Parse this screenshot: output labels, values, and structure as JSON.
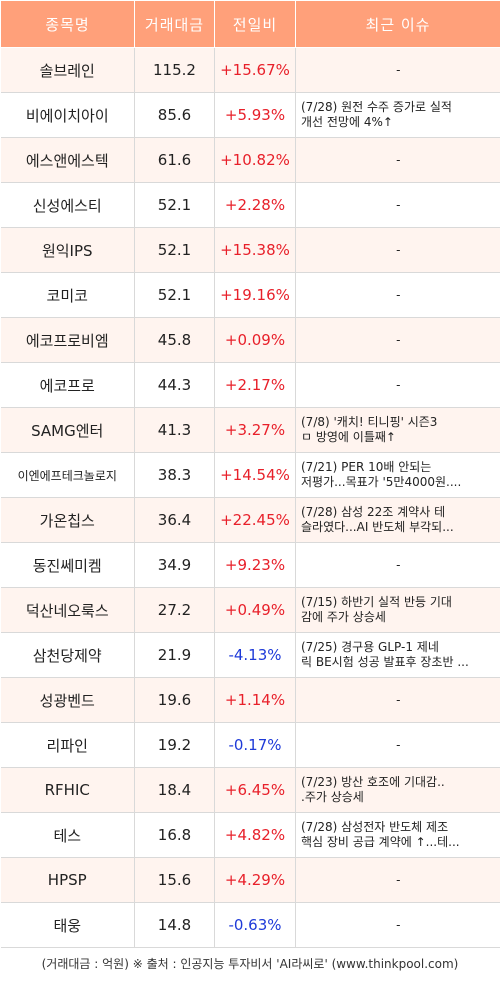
{
  "header": {
    "name": "종목명",
    "volume": "거래대금",
    "change": "전일비",
    "issue": "최근 이슈"
  },
  "rows": [
    {
      "name": "솔브레인",
      "volume": "115.2",
      "change": "+15.67%",
      "dir": "up",
      "issue": "-"
    },
    {
      "name": "비에이치아이",
      "volume": "85.6",
      "change": "+5.93%",
      "dir": "up",
      "issue": "(7/28) 원전 수주 증가로 실적\n 개선 전망에 4%↑"
    },
    {
      "name": "에스앤에스텍",
      "volume": "61.6",
      "change": "+10.82%",
      "dir": "up",
      "issue": "-"
    },
    {
      "name": "신성에스티",
      "volume": "52.1",
      "change": "+2.28%",
      "dir": "up",
      "issue": "-"
    },
    {
      "name": "원익IPS",
      "volume": "52.1",
      "change": "+15.38%",
      "dir": "up",
      "issue": "-"
    },
    {
      "name": "코미코",
      "volume": "52.1",
      "change": "+19.16%",
      "dir": "up",
      "issue": "-"
    },
    {
      "name": "에코프로비엠",
      "volume": "45.8",
      "change": "+0.09%",
      "dir": "up",
      "issue": "-"
    },
    {
      "name": "에코프로",
      "volume": "44.3",
      "change": "+2.17%",
      "dir": "up",
      "issue": "-"
    },
    {
      "name": "SAMG엔터",
      "volume": "41.3",
      "change": "+3.27%",
      "dir": "up",
      "issue": "(7/8) '캐치! 티니핑' 시즌3\n ㅁ 방영에 이틀째↑"
    },
    {
      "name": "이엔에프테크놀로지",
      "volume": "38.3",
      "change": "+14.54%",
      "dir": "up",
      "issue": "(7/21) PER 10배 안되는\n저평가...목표가 '5만4000원....",
      "small": true
    },
    {
      "name": "가온칩스",
      "volume": "36.4",
      "change": "+22.45%",
      "dir": "up",
      "issue": "(7/28) 삼성 22조 계약사 테\n슬라였다...AI 반도체 부각되..."
    },
    {
      "name": "동진쎄미켐",
      "volume": "34.9",
      "change": "+9.23%",
      "dir": "up",
      "issue": "-"
    },
    {
      "name": "덕산네오룩스",
      "volume": "27.2",
      "change": "+0.49%",
      "dir": "up",
      "issue": "(7/15) 하반기 실적 반등 기대\n감에 주가 상승세"
    },
    {
      "name": "삼천당제약",
      "volume": "21.9",
      "change": "-4.13%",
      "dir": "down",
      "issue": "(7/25) 경구용 GLP-1 제네\n릭 BE시험 성공 발표후 장초반 ..."
    },
    {
      "name": "성광벤드",
      "volume": "19.6",
      "change": "+1.14%",
      "dir": "up",
      "issue": "-"
    },
    {
      "name": "리파인",
      "volume": "19.2",
      "change": "-0.17%",
      "dir": "down",
      "issue": "-"
    },
    {
      "name": "RFHIC",
      "volume": "18.4",
      "change": "+6.45%",
      "dir": "up",
      "issue": "(7/23) 방산 호조에 기대감..\n.주가 상승세"
    },
    {
      "name": "테스",
      "volume": "16.8",
      "change": "+4.82%",
      "dir": "up",
      "issue": "(7/28) 삼성전자 반도체 제조\n핵심 장비 공급 계약에 ↑...테..."
    },
    {
      "name": "HPSP",
      "volume": "15.6",
      "change": "+4.29%",
      "dir": "up",
      "issue": "-"
    },
    {
      "name": "태웅",
      "volume": "14.8",
      "change": "-0.63%",
      "dir": "down",
      "issue": "-"
    }
  ],
  "footer": "(거래대금 : 억원) ※ 출처 : 인공지능 투자비서 'AI라씨로' (www.thinkpool.com)",
  "colors": {
    "header_bg": "#ffa07a",
    "odd_row_bg": "#fff4ef",
    "up": "#e8202a",
    "down": "#1e3ad8"
  }
}
